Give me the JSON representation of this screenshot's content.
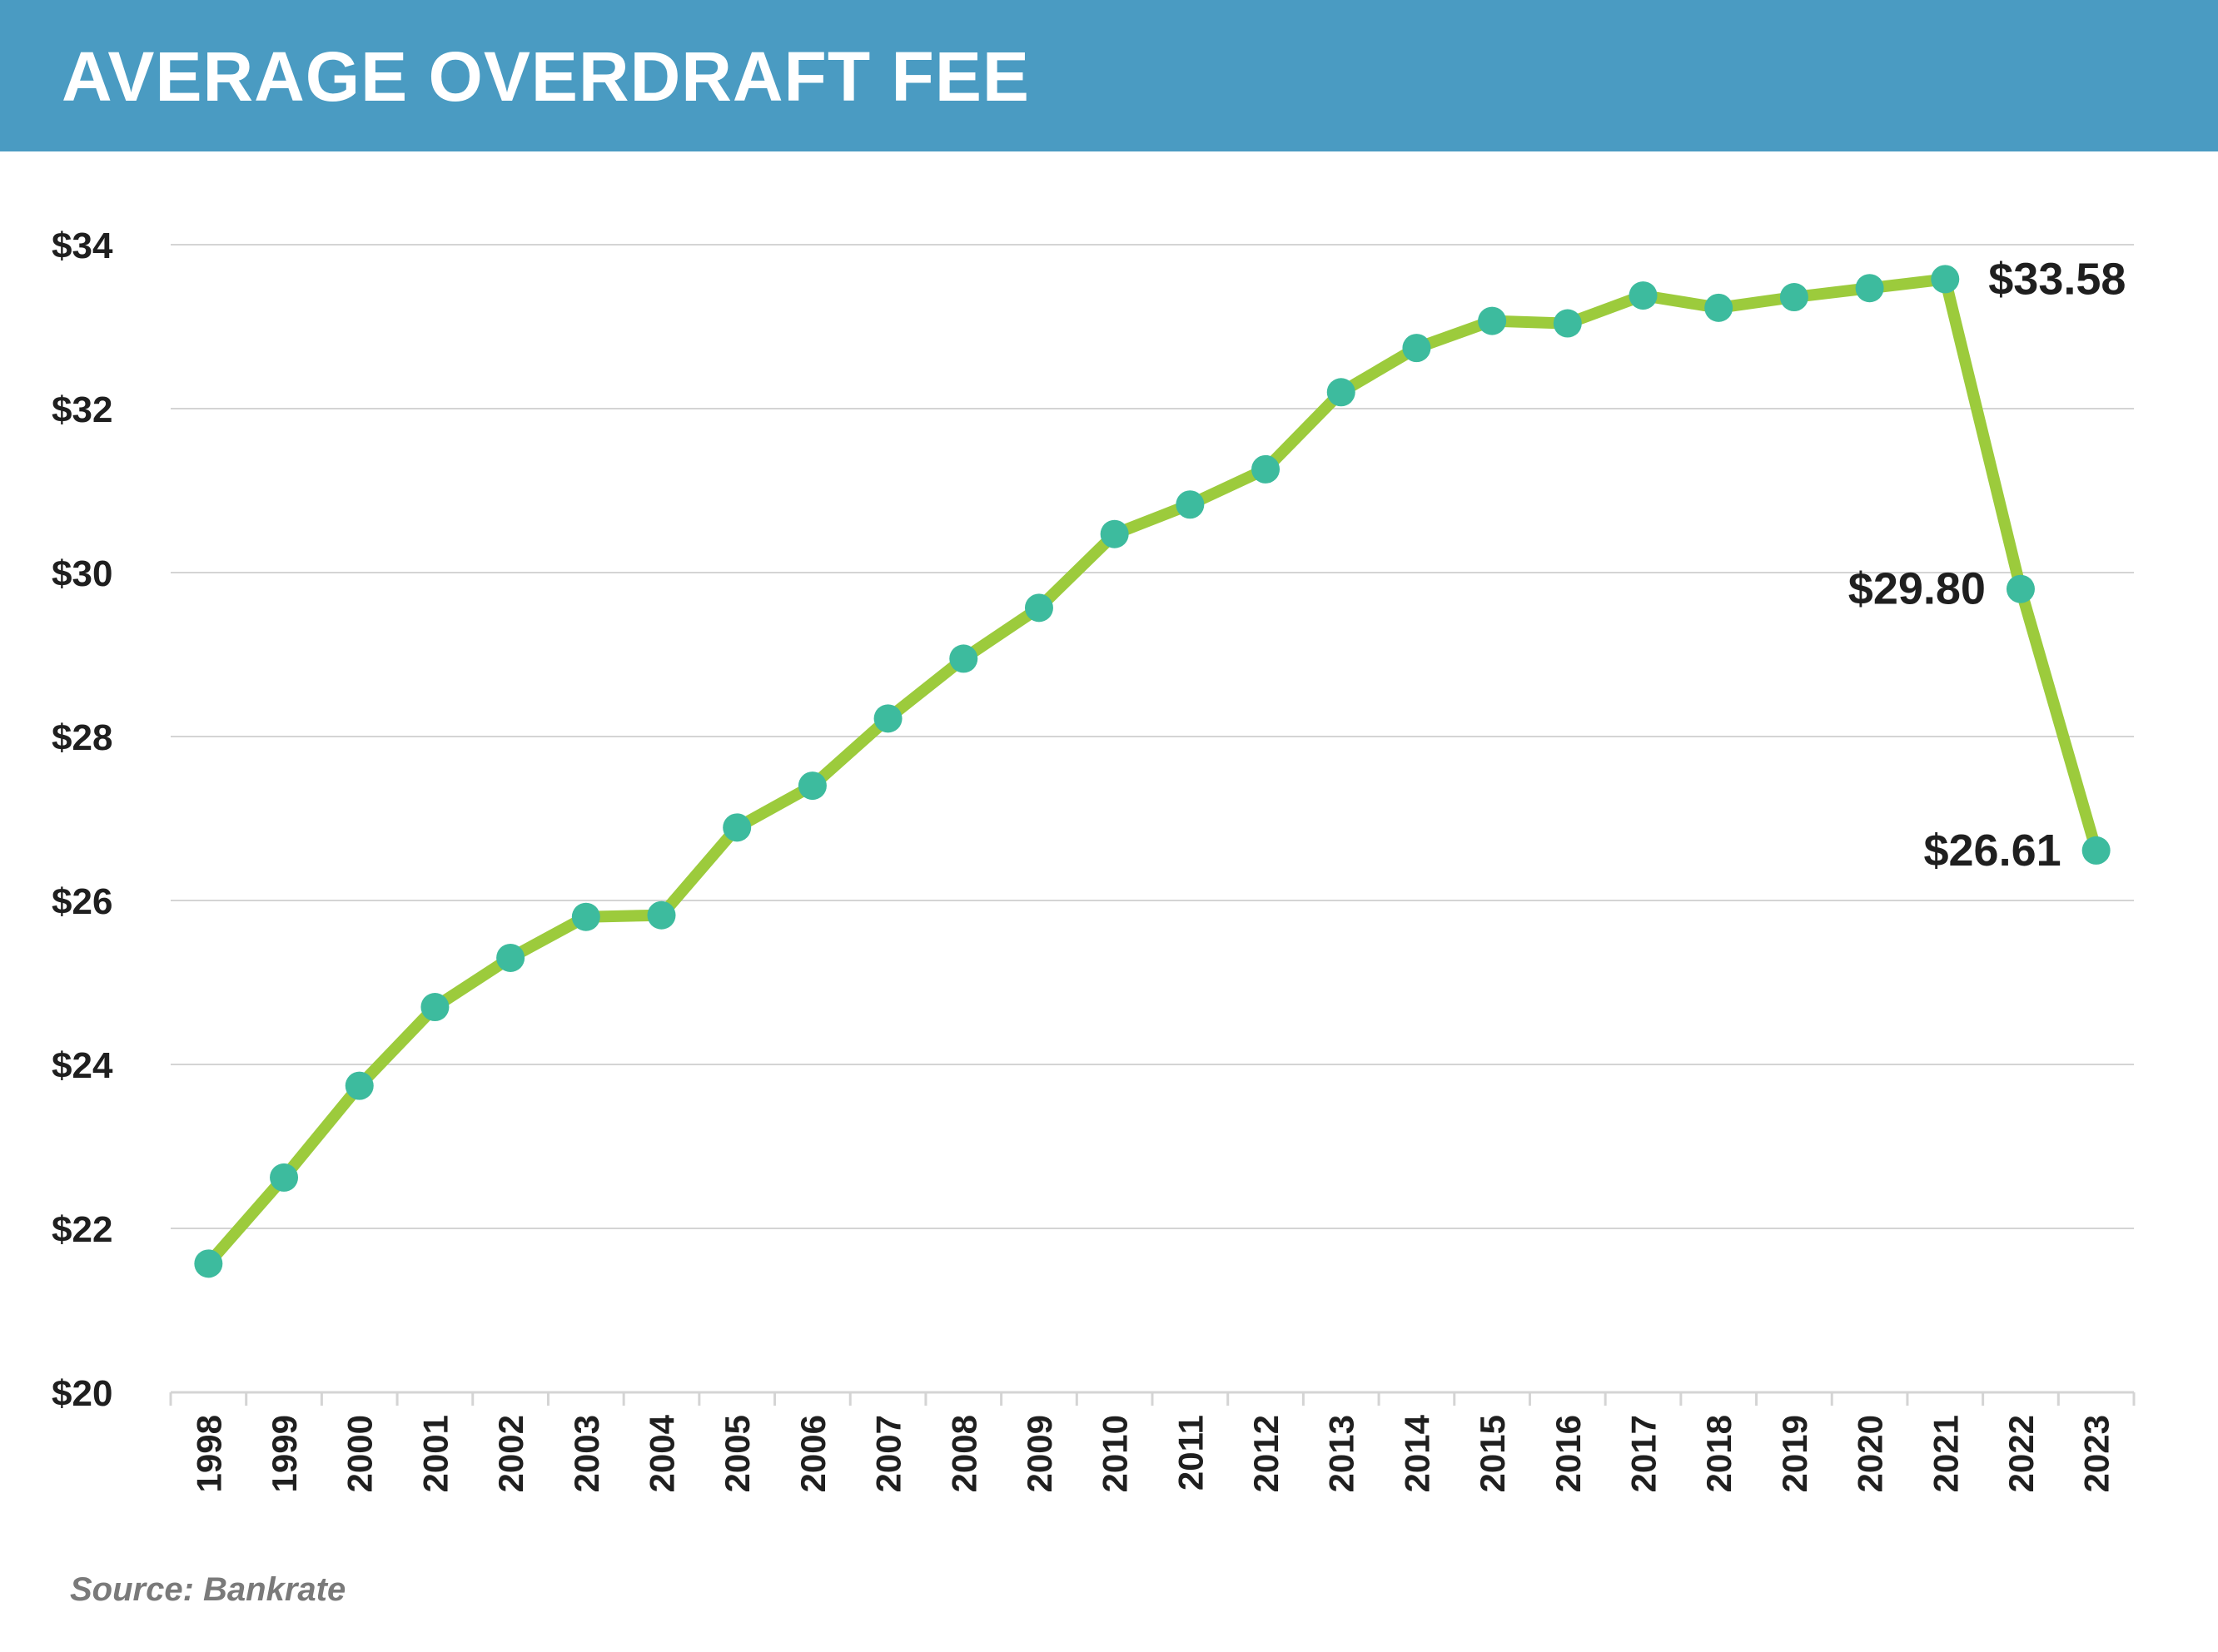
{
  "header": {
    "title": "AVERAGE OVERDRAFT FEE"
  },
  "footer": {
    "source": "Source: Bankrate"
  },
  "colors": {
    "header_bg": "#4a9bc2",
    "line": "#9ccb3c",
    "marker": "#3dbb9e",
    "grid": "#d4d4d4",
    "text": "#1f1f1f"
  },
  "chart_data": {
    "type": "line",
    "title": "AVERAGE OVERDRAFT FEE",
    "xlabel": "",
    "ylabel": "",
    "ylim": [
      20,
      34
    ],
    "y_ticks": [
      "$20",
      "$22",
      "$24",
      "$26",
      "$28",
      "$30",
      "$32",
      "$34"
    ],
    "y_tick_values": [
      20,
      22,
      24,
      26,
      28,
      30,
      32,
      34
    ],
    "grid": true,
    "legend": "none",
    "x": [
      "1998",
      "1999",
      "2000",
      "2001",
      "2002",
      "2003",
      "2004",
      "2005",
      "2006",
      "2007",
      "2008",
      "2009",
      "2010",
      "2011",
      "2012",
      "2013",
      "2014",
      "2015",
      "2016",
      "2017",
      "2018",
      "2019",
      "2020",
      "2021",
      "2022",
      "2023"
    ],
    "series": [
      {
        "values": [
          21.57,
          22.62,
          23.74,
          24.7,
          25.3,
          25.8,
          25.82,
          26.89,
          27.4,
          28.22,
          28.95,
          29.57,
          30.47,
          30.83,
          31.26,
          32.2,
          32.74,
          33.07,
          33.04,
          33.38,
          33.23,
          33.36,
          33.47,
          33.58,
          29.8,
          26.61
        ]
      }
    ],
    "annotations": [
      {
        "x": "2021",
        "value": 33.58,
        "text": "$33.58",
        "side": "right"
      },
      {
        "x": "2022",
        "value": 29.8,
        "text": "$29.80",
        "side": "left"
      },
      {
        "x": "2023",
        "value": 26.61,
        "text": "$26.61",
        "side": "left"
      }
    ]
  }
}
